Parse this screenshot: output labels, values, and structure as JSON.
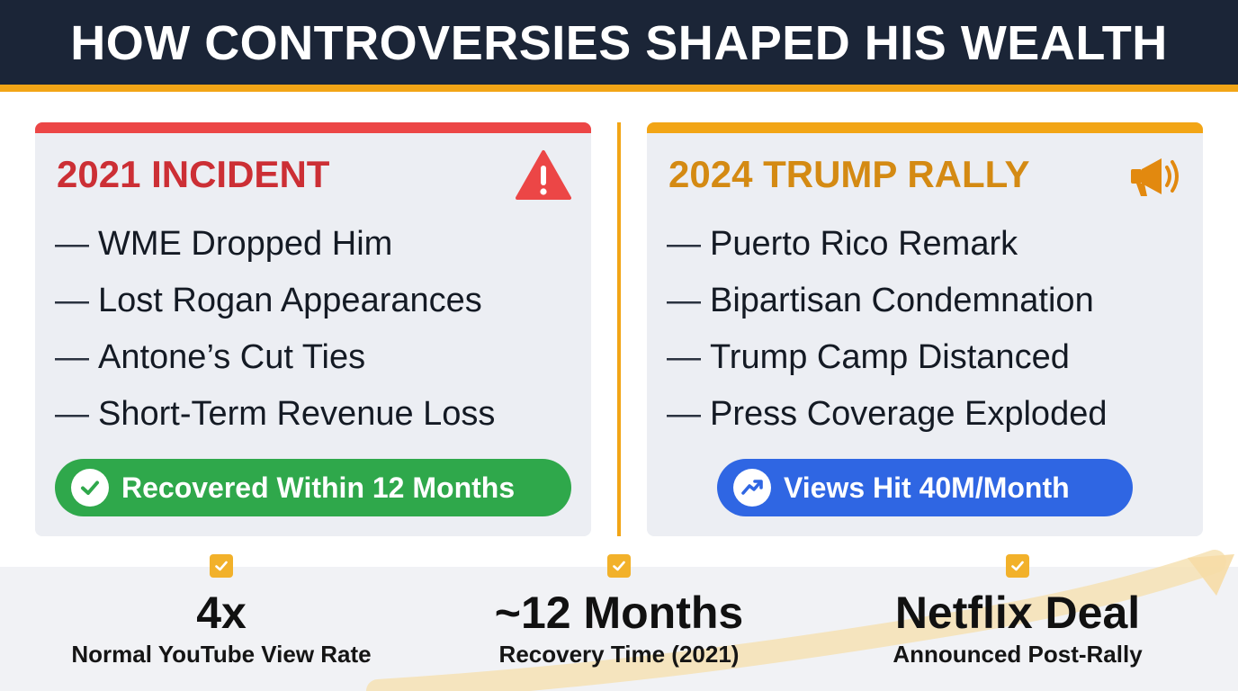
{
  "header": {
    "title": "HOW CONTROVERSIES SHAPED HIS WEALTH"
  },
  "cards": [
    {
      "title": "2021 INCIDENT",
      "icon": "warning-icon",
      "accent": "#ec4646",
      "bullets": [
        "WME Dropped Him",
        "Lost Rogan Appearances",
        "Antone’s Cut Ties",
        "Short-Term Revenue Loss"
      ],
      "pill": {
        "label": "Recovered Within 12 Months",
        "icon": "check-circle-icon",
        "color": "#2fa84b"
      }
    },
    {
      "title": "2024 TRUMP RALLY",
      "icon": "megaphone-icon",
      "accent": "#f2a516",
      "bullets": [
        "Puerto Rico Remark",
        "Bipartisan Condemnation",
        "Trump Camp Distanced",
        "Press Coverage Exploded"
      ],
      "pill": {
        "label": "Views Hit 40M/Month",
        "icon": "trend-up-icon",
        "color": "#2f66e3"
      }
    }
  ],
  "stats": [
    {
      "value": "4x",
      "label": "Normal YouTube View Rate"
    },
    {
      "value": "~12 Months",
      "label": "Recovery Time (2021)"
    },
    {
      "value": "Netflix Deal",
      "label": "Announced Post-Rally"
    }
  ],
  "dash": "—"
}
